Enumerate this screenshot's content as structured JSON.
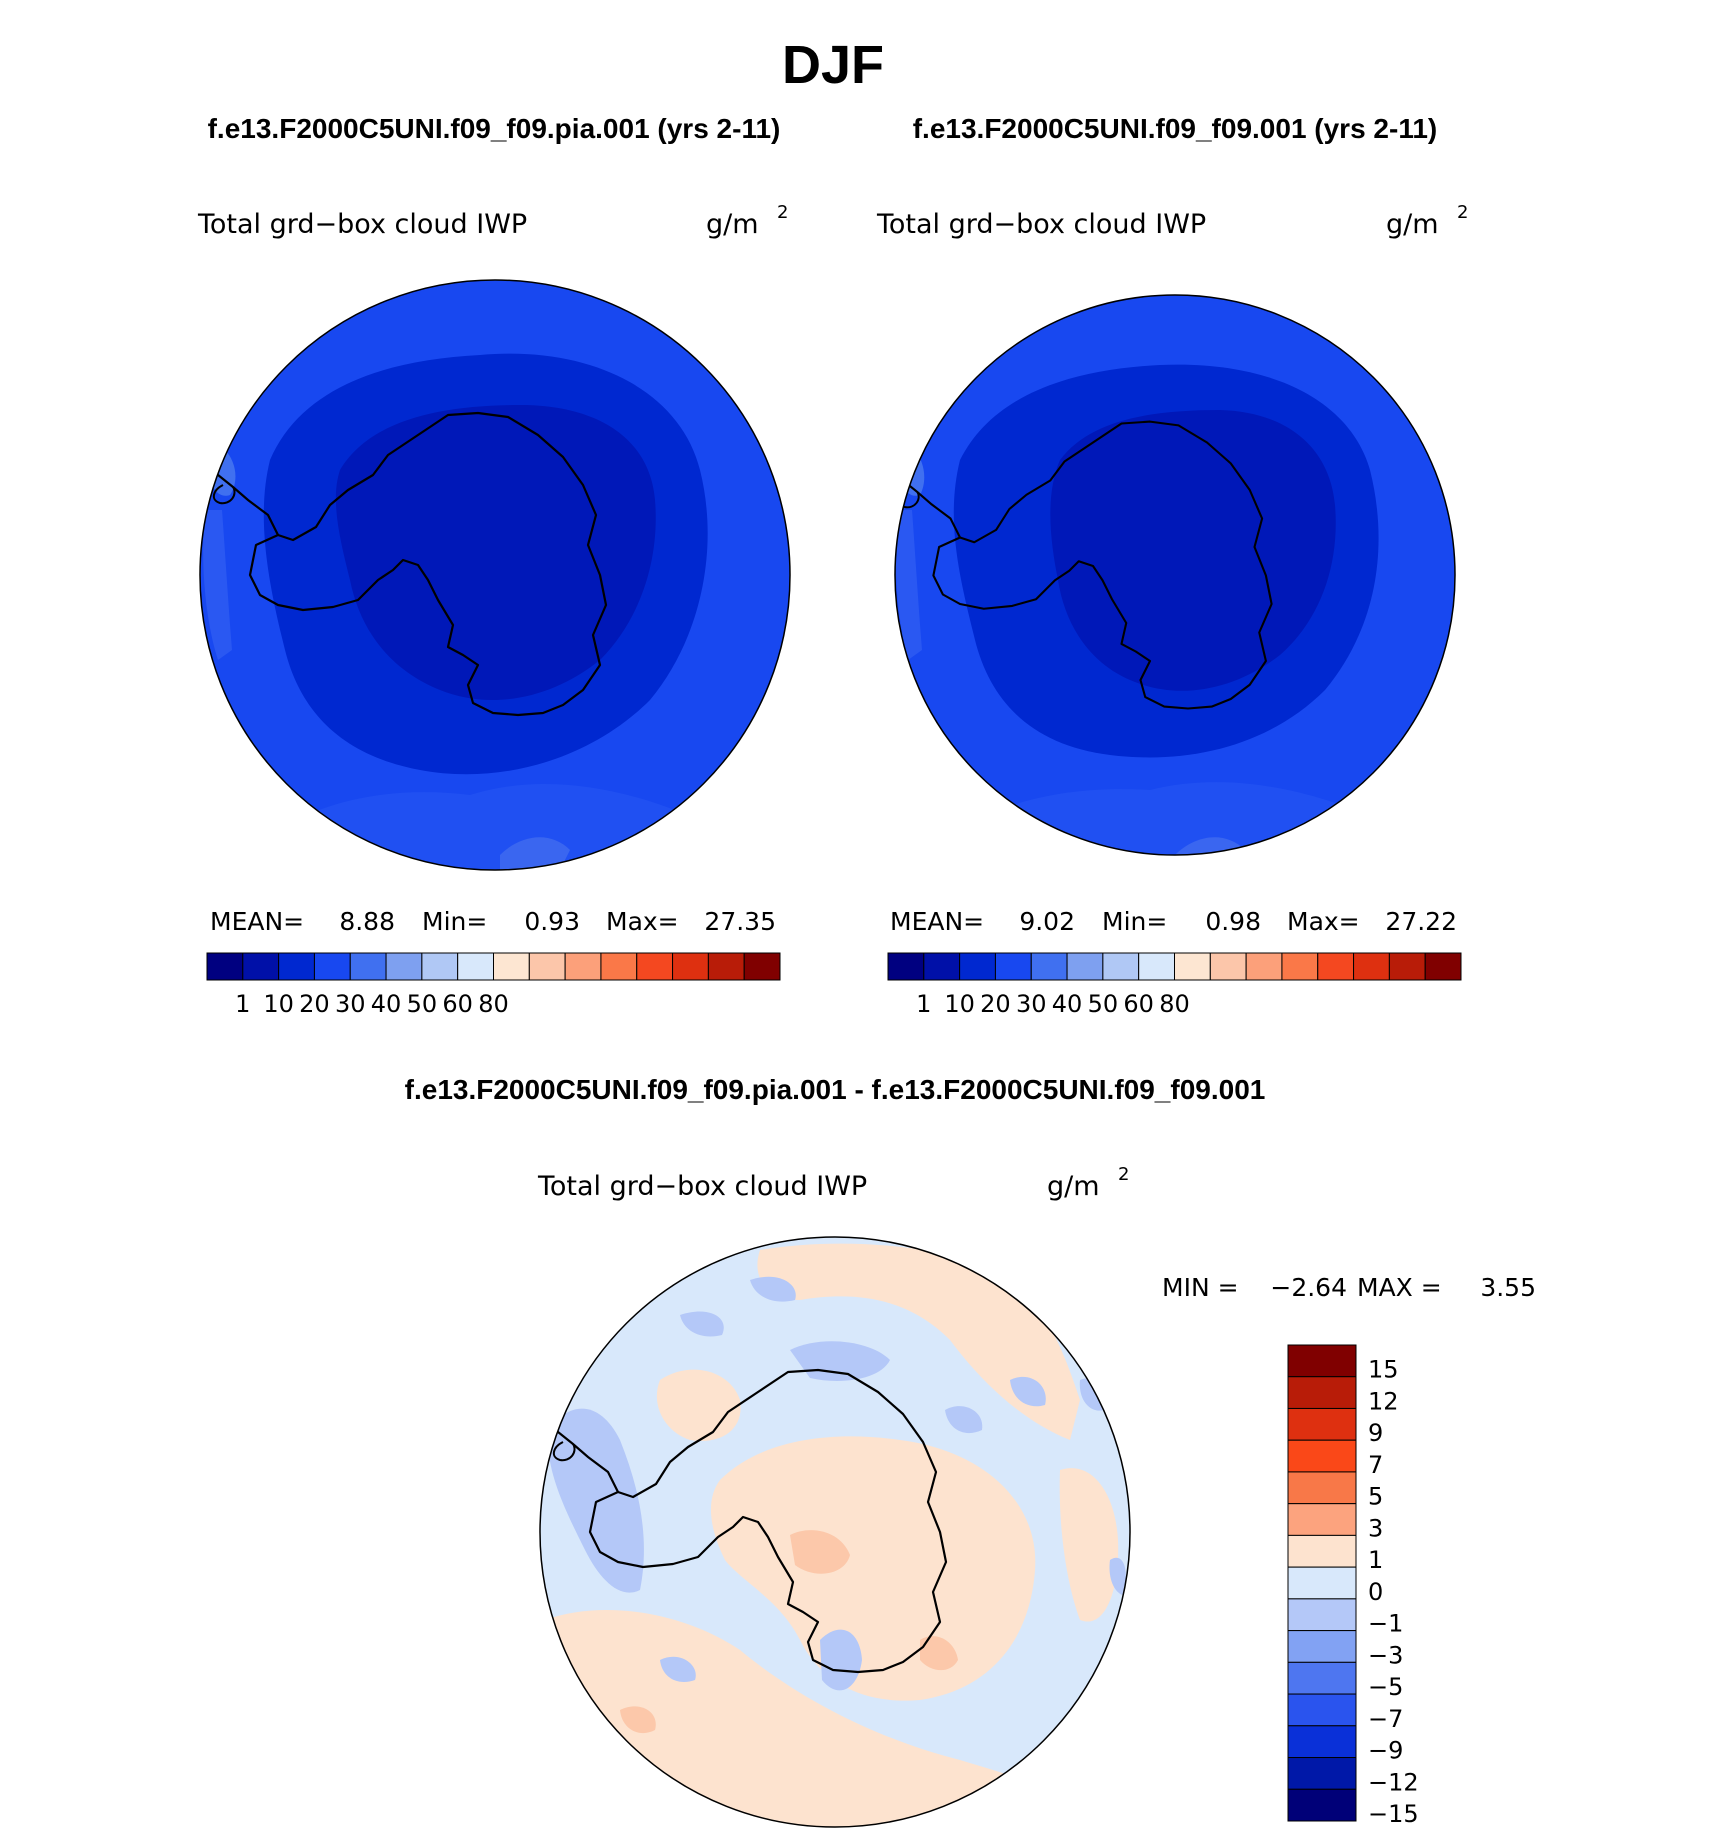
{
  "season_title": "DJF",
  "panels": [
    {
      "case_title": "f.e13.F2000C5UNI.f09_f09.pia.001 (yrs 2-11)",
      "variable": "Total grd−box cloud IWP",
      "units": "g/m",
      "units_exponent": "2",
      "stats": {
        "mean_label": "MEAN=",
        "mean": "8.88",
        "min_label": "Min=",
        "min": "0.93",
        "max_label": "Max=",
        "max": "27.35"
      }
    },
    {
      "case_title": "f.e13.F2000C5UNI.f09_f09.001 (yrs 2-11)",
      "variable": "Total grd−box cloud IWP",
      "units": "g/m",
      "units_exponent": "2",
      "stats": {
        "mean_label": "MEAN=",
        "mean": "9.02",
        "min_label": "Min=",
        "min": "0.98",
        "max_label": "Max=",
        "max": "27.22"
      }
    }
  ],
  "field_colorbar": {
    "colors": [
      "#000080",
      "#0010a8",
      "#0028d0",
      "#1848f0",
      "#4070f0",
      "#7ea0f0",
      "#b0c8f5",
      "#d8e8fb",
      "#fde6d2",
      "#fcc6aa",
      "#fca07a",
      "#fa7848",
      "#f44820",
      "#de3010",
      "#b81c08",
      "#800000"
    ],
    "tick_labels": [
      "1",
      "10",
      "20",
      "30",
      "40",
      "50",
      "60",
      "80"
    ]
  },
  "difference": {
    "title": "f.e13.F2000C5UNI.f09_f09.pia.001 - f.e13.F2000C5UNI.f09_f09.001",
    "variable": "Total grd−box cloud IWP",
    "units": "g/m",
    "units_exponent": "2",
    "min_label": "MIN =",
    "min": "−2.64",
    "max_label": "MAX =",
    "max": "3.55",
    "colorbar_colors_top_to_bottom": [
      "#800000",
      "#b81c08",
      "#de3010",
      "#fa4818",
      "#f87848",
      "#fca37e",
      "#fde3cf",
      "#d8e8fb",
      "#b4c8f8",
      "#82a2f3",
      "#4e76f0",
      "#2a54ee",
      "#0a30d8",
      "#0018a8",
      "#000078"
    ],
    "colorbar_labels_top_to_bottom": [
      "15",
      "12",
      "9",
      "7",
      "5",
      "3",
      "1",
      "0",
      "−1",
      "−3",
      "−5",
      "−7",
      "−9",
      "−12",
      "−15"
    ]
  }
}
